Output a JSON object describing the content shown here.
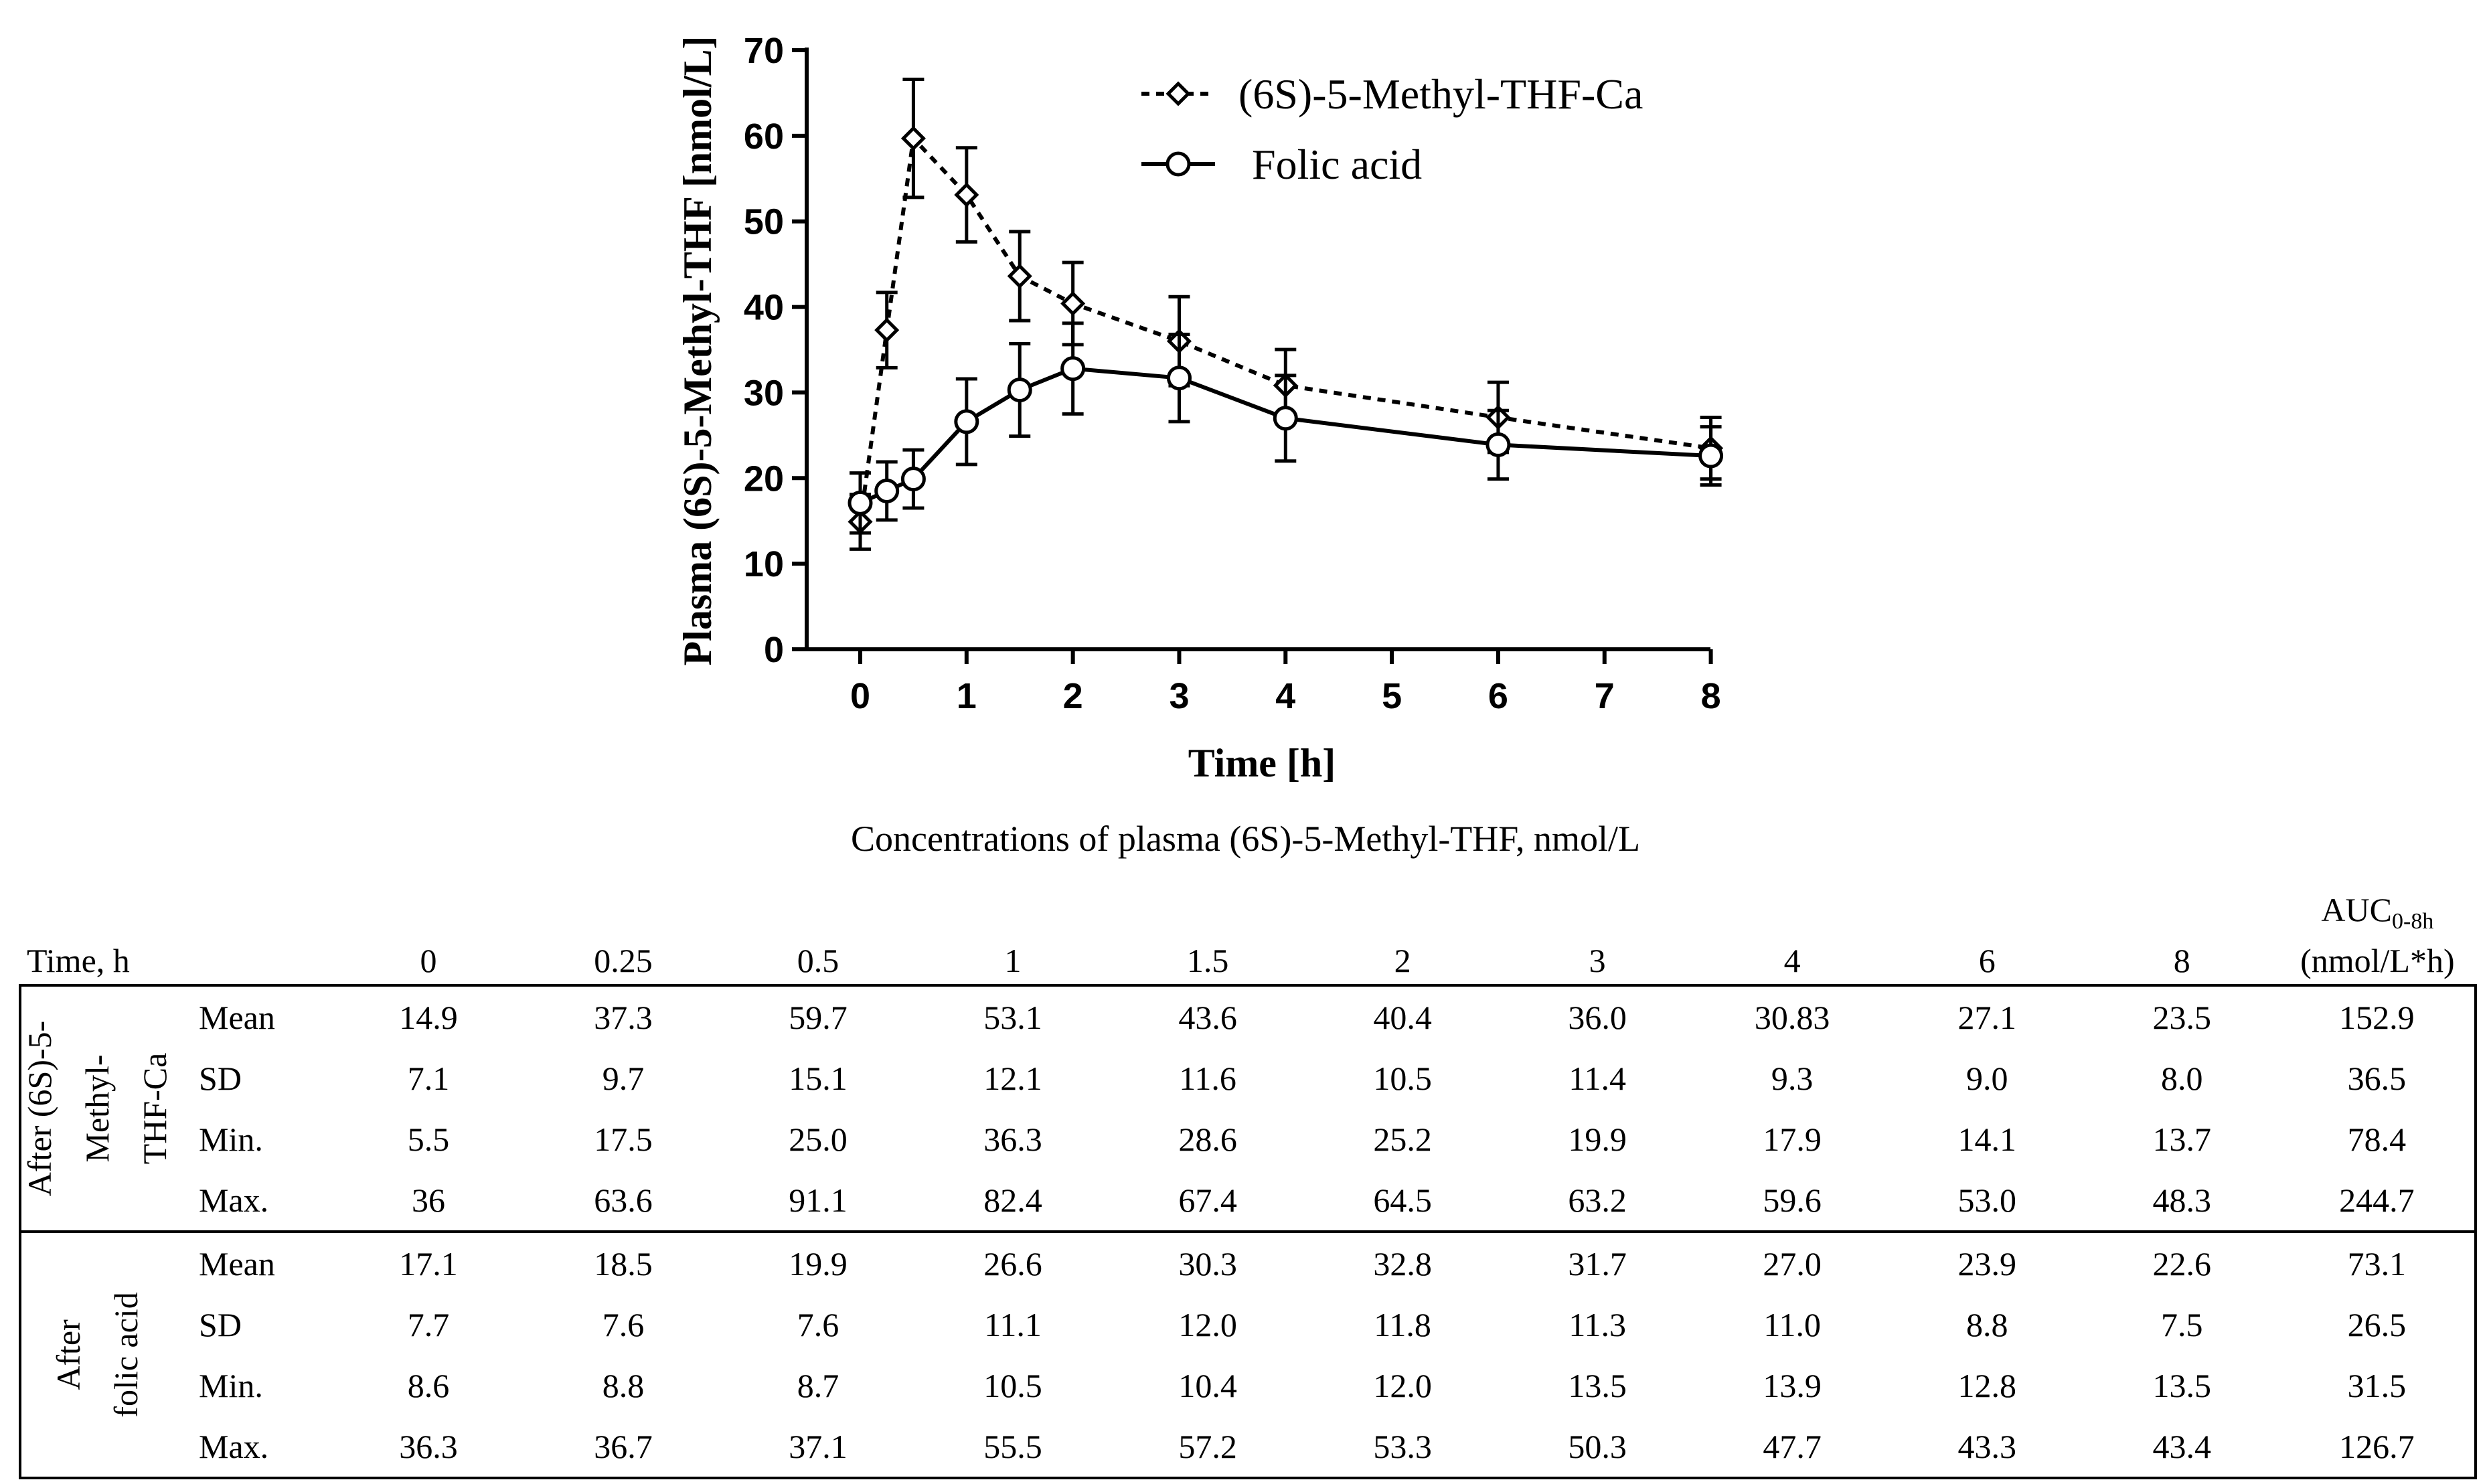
{
  "chart_data": {
    "type": "line",
    "xlabel": "Time [h]",
    "ylabel": "Plasma (6S)-5-Methyl-THF [nmol/L]",
    "ylim": [
      0,
      70
    ],
    "y_ticks": [
      "0",
      "10",
      "20",
      "30",
      "40",
      "50",
      "60",
      "70"
    ],
    "x_ticks": [
      "0",
      "1",
      "2",
      "3",
      "4",
      "5",
      "6",
      "7",
      "8"
    ],
    "legend_position": "top-right",
    "series": [
      {
        "name": "(6S)-5-Methyl-THF-Ca",
        "line_style": "dashed",
        "marker": "diamond",
        "x": [
          0,
          0.25,
          0.5,
          1,
          1.5,
          2,
          3,
          4,
          6,
          8
        ],
        "y": [
          14.9,
          37.3,
          59.7,
          53.1,
          43.6,
          40.4,
          36.0,
          30.83,
          27.1,
          23.5
        ],
        "error": [
          3.2,
          4.4,
          6.9,
          5.5,
          5.2,
          4.8,
          5.2,
          4.2,
          4.1,
          3.6
        ]
      },
      {
        "name": "Folic acid",
        "line_style": "solid",
        "marker": "circle",
        "x": [
          0,
          0.25,
          0.5,
          1,
          1.5,
          2,
          3,
          4,
          6,
          8
        ],
        "y": [
          17.1,
          18.5,
          19.9,
          26.6,
          30.3,
          32.8,
          31.7,
          27.0,
          23.9,
          22.6
        ],
        "error": [
          3.5,
          3.4,
          3.4,
          5.0,
          5.4,
          5.3,
          5.1,
          5.0,
          4.0,
          3.4
        ]
      }
    ]
  },
  "table": {
    "caption": "Concentrations of plasma (6S)-5-Methyl-THF, nmol/L",
    "time_label": "Time, h",
    "time_points": [
      "0",
      "0.25",
      "0.5",
      "1",
      "1.5",
      "2",
      "3",
      "4",
      "6",
      "8"
    ],
    "auc_header": "AUC",
    "auc_sub": "0-8h",
    "auc_unit": "(nmol/L*h)",
    "groups": [
      {
        "label_line1": "After (6S)-5-",
        "label_line2": "Methyl-",
        "label_line3": "THF-Ca",
        "rows": [
          {
            "stat": "Mean",
            "values": [
              "14.9",
              "37.3",
              "59.7",
              "53.1",
              "43.6",
              "40.4",
              "36.0",
              "30.83",
              "27.1",
              "23.5"
            ],
            "auc": "152.9"
          },
          {
            "stat": "SD",
            "values": [
              "7.1",
              "9.7",
              "15.1",
              "12.1",
              "11.6",
              "10.5",
              "11.4",
              "9.3",
              "9.0",
              "8.0"
            ],
            "auc": "36.5"
          },
          {
            "stat": "Min.",
            "values": [
              "5.5",
              "17.5",
              "25.0",
              "36.3",
              "28.6",
              "25.2",
              "19.9",
              "17.9",
              "14.1",
              "13.7"
            ],
            "auc": "78.4"
          },
          {
            "stat": "Max.",
            "values": [
              "36",
              "63.6",
              "91.1",
              "82.4",
              "67.4",
              "64.5",
              "63.2",
              "59.6",
              "53.0",
              "48.3"
            ],
            "auc": "244.7"
          }
        ]
      },
      {
        "label_line1": "After",
        "label_line2": "folic acid",
        "label_line3": "",
        "rows": [
          {
            "stat": "Mean",
            "values": [
              "17.1",
              "18.5",
              "19.9",
              "26.6",
              "30.3",
              "32.8",
              "31.7",
              "27.0",
              "23.9",
              "22.6"
            ],
            "auc": "73.1"
          },
          {
            "stat": "SD",
            "values": [
              "7.7",
              "7.6",
              "7.6",
              "11.1",
              "12.0",
              "11.8",
              "11.3",
              "11.0",
              "8.8",
              "7.5"
            ],
            "auc": "26.5"
          },
          {
            "stat": "Min.",
            "values": [
              "8.6",
              "8.8",
              "8.7",
              "10.5",
              "10.4",
              "12.0",
              "13.5",
              "13.9",
              "12.8",
              "13.5"
            ],
            "auc": "31.5"
          },
          {
            "stat": "Max.",
            "values": [
              "36.3",
              "36.7",
              "37.1",
              "55.5",
              "57.2",
              "53.3",
              "50.3",
              "47.7",
              "43.3",
              "43.4"
            ],
            "auc": "126.7"
          }
        ]
      }
    ]
  }
}
